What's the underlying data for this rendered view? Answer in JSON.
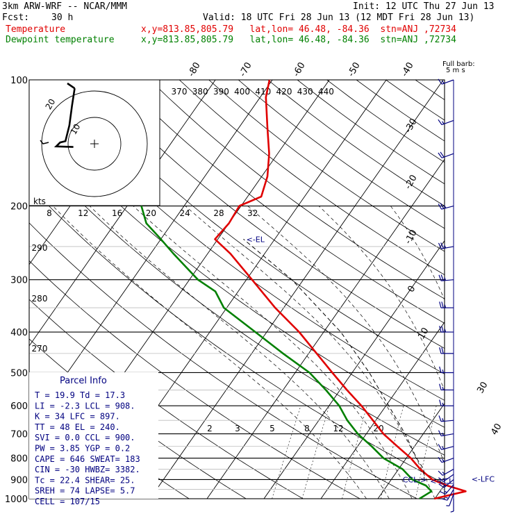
{
  "header": {
    "model": "3km ARW-WRF -- NCAR/MMM",
    "init": "Init: 12 UTC Thu 27 Jun 13",
    "fcst_label": "Fcst:",
    "fcst_value": "30 h",
    "valid": "Valid: 18 UTC Fri 28 Jun 13 (12 MDT Fri 28 Jun 13)",
    "temperature_label": "Temperature",
    "dewpoint_label": "Dewpoint temperature",
    "location": "x,y=813.85,805.79   lat,lon= 46.48, -84.36  stn=ANJ ,72734"
  },
  "colors": {
    "temperature": "#e00000",
    "dewpoint": "#008000",
    "wind": "#000080",
    "grid": "#000000"
  },
  "chart_data": {
    "type": "line",
    "title": "",
    "xlabel": "",
    "ylabel": "",
    "pressure_ticks": [
      100,
      200,
      300,
      400,
      500,
      600,
      700,
      800,
      900,
      1000
    ],
    "isotherm_labels": [
      "-80",
      "-70",
      "-60",
      "-50",
      "-40",
      "-30",
      "-20",
      "-10",
      "0",
      "10",
      "20",
      "30",
      "40"
    ],
    "theta_labels": [
      "370",
      "380",
      "390",
      "400",
      "410",
      "420",
      "430",
      "440"
    ],
    "theta_side_labels": [
      "290",
      "280",
      "270"
    ],
    "mixing_ratio_labels": [
      "2",
      "3",
      "5",
      "8",
      "12",
      "20"
    ],
    "pressure_range_hpa": [
      100,
      1000
    ],
    "series": [
      {
        "name": "Temperature",
        "color": "#e00000",
        "points": [
          {
            "p": 1000,
            "t": 19.9
          },
          {
            "p": 960,
            "t": 24.5
          },
          {
            "p": 930,
            "t": 20.5
          },
          {
            "p": 900,
            "t": 17.2
          },
          {
            "p": 850,
            "t": 13.8
          },
          {
            "p": 800,
            "t": 10.8
          },
          {
            "p": 750,
            "t": 7.0
          },
          {
            "p": 700,
            "t": 3.0
          },
          {
            "p": 650,
            "t": -0.5
          },
          {
            "p": 600,
            "t": -4.3
          },
          {
            "p": 550,
            "t": -8.8
          },
          {
            "p": 500,
            "t": -13.5
          },
          {
            "p": 450,
            "t": -18.6
          },
          {
            "p": 400,
            "t": -24.3
          },
          {
            "p": 350,
            "t": -31.5
          },
          {
            "p": 300,
            "t": -39.0
          },
          {
            "p": 260,
            "t": -46.0
          },
          {
            "p": 240,
            "t": -50.5
          },
          {
            "p": 220,
            "t": -50.0
          },
          {
            "p": 200,
            "t": -50.3
          },
          {
            "p": 190,
            "t": -47.6
          },
          {
            "p": 170,
            "t": -49.0
          },
          {
            "p": 150,
            "t": -51.5
          },
          {
            "p": 130,
            "t": -55.0
          },
          {
            "p": 110,
            "t": -59.0
          },
          {
            "p": 100,
            "t": -60.5
          }
        ]
      },
      {
        "name": "Dewpoint temperature",
        "color": "#008000",
        "points": [
          {
            "p": 1000,
            "t": 17.3
          },
          {
            "p": 960,
            "t": 18.5
          },
          {
            "p": 930,
            "t": 16.8
          },
          {
            "p": 900,
            "t": 13.7
          },
          {
            "p": 850,
            "t": 10.7
          },
          {
            "p": 800,
            "t": 6.0
          },
          {
            "p": 750,
            "t": 2.5
          },
          {
            "p": 700,
            "t": -1.5
          },
          {
            "p": 650,
            "t": -5.0
          },
          {
            "p": 600,
            "t": -8.2
          },
          {
            "p": 550,
            "t": -12.5
          },
          {
            "p": 500,
            "t": -17.5
          },
          {
            "p": 450,
            "t": -24.5
          },
          {
            "p": 400,
            "t": -32.0
          },
          {
            "p": 350,
            "t": -40.5
          },
          {
            "p": 320,
            "t": -44.0
          },
          {
            "p": 300,
            "t": -48.5
          },
          {
            "p": 260,
            "t": -56.0
          },
          {
            "p": 240,
            "t": -60.0
          },
          {
            "p": 220,
            "t": -64.5
          },
          {
            "p": 200,
            "t": -67.5
          }
        ]
      }
    ],
    "parcel_curve": [
      {
        "p": 908,
        "t": 16.0
      },
      {
        "p": 850,
        "t": 14.4
      },
      {
        "p": 800,
        "t": 11.8
      },
      {
        "p": 700,
        "t": 6.8
      },
      {
        "p": 600,
        "t": 0.5
      },
      {
        "p": 500,
        "t": -7.0
      },
      {
        "p": 400,
        "t": -17.0
      },
      {
        "p": 300,
        "t": -32.0
      },
      {
        "p": 240,
        "t": -45.5
      }
    ],
    "level_markers": [
      {
        "label": "<-EL",
        "p": 240,
        "t": -45
      },
      {
        "label": "CCL->",
        "p": 900,
        "t": 12
      },
      {
        "label": "<-LCL",
        "p": 908,
        "t": 17
      },
      {
        "label": "<-LFC",
        "p": 897,
        "t": 24
      }
    ],
    "hodograph": {
      "unit_label": "kts",
      "ring_labels": [
        "20",
        "10"
      ],
      "speed_tick_labels": [
        "8",
        "12",
        "16",
        "20",
        "24",
        "28",
        "32"
      ],
      "trace": [
        {
          "u": -8.0,
          "v": -1.2
        },
        {
          "u": -14.5,
          "v": -1.0
        },
        {
          "u": -13.0,
          "v": 0.5
        },
        {
          "u": -11.0,
          "v": 1.0
        },
        {
          "u": -9.5,
          "v": 7.0
        },
        {
          "u": -8.5,
          "v": 14.5
        },
        {
          "u": -7.5,
          "v": 21.0
        }
      ]
    },
    "wind_barbs": {
      "header": "Full barb:",
      "unit": "5 m s",
      "speed_labels": [
        "30",
        "40"
      ],
      "levels": [
        {
          "p": 1000,
          "spd": 3,
          "dir": 180
        },
        {
          "p": 975,
          "spd": 4,
          "dir": 200
        },
        {
          "p": 950,
          "spd": 6,
          "dir": 210
        },
        {
          "p": 925,
          "spd": 7,
          "dir": 220
        },
        {
          "p": 900,
          "spd": 7,
          "dir": 230
        },
        {
          "p": 875,
          "spd": 7,
          "dir": 235
        },
        {
          "p": 850,
          "spd": 7,
          "dir": 240
        },
        {
          "p": 800,
          "spd": 6,
          "dir": 250
        },
        {
          "p": 750,
          "spd": 6,
          "dir": 255
        },
        {
          "p": 700,
          "spd": 6,
          "dir": 260
        },
        {
          "p": 650,
          "spd": 6,
          "dir": 265
        },
        {
          "p": 600,
          "spd": 7,
          "dir": 270
        },
        {
          "p": 550,
          "spd": 8,
          "dir": 270
        },
        {
          "p": 500,
          "spd": 9,
          "dir": 270
        },
        {
          "p": 450,
          "spd": 10,
          "dir": 270
        },
        {
          "p": 400,
          "spd": 11,
          "dir": 270
        },
        {
          "p": 350,
          "spd": 11,
          "dir": 270
        },
        {
          "p": 300,
          "spd": 12,
          "dir": 265
        },
        {
          "p": 250,
          "spd": 13,
          "dir": 260
        },
        {
          "p": 200,
          "spd": 12,
          "dir": 255
        },
        {
          "p": 150,
          "spd": 10,
          "dir": 250
        },
        {
          "p": 125,
          "spd": 8,
          "dir": 250
        },
        {
          "p": 100,
          "spd": 6,
          "dir": 250
        }
      ]
    },
    "parcel_info": {
      "title": "Parcel Info",
      "rows": [
        "T  =    19.9  Td =  17.3",
        "LI =    -2.3  LCL =  908.",
        "K  =      34  LFC =  897.",
        "TT =      48  EL  =  240.",
        "SVI =    0.0  CCL =  900.",
        "PW =    3.85  YGP =   0.2",
        "CAPE =   646  SWEAT=  183",
        "CIN =    -30  HWBZ= 3382.",
        "Tc =    22.4  SHEAR=  25.",
        "SREH =    74  LAPSE=  5.7",
        "CELL = 107/15"
      ]
    }
  }
}
